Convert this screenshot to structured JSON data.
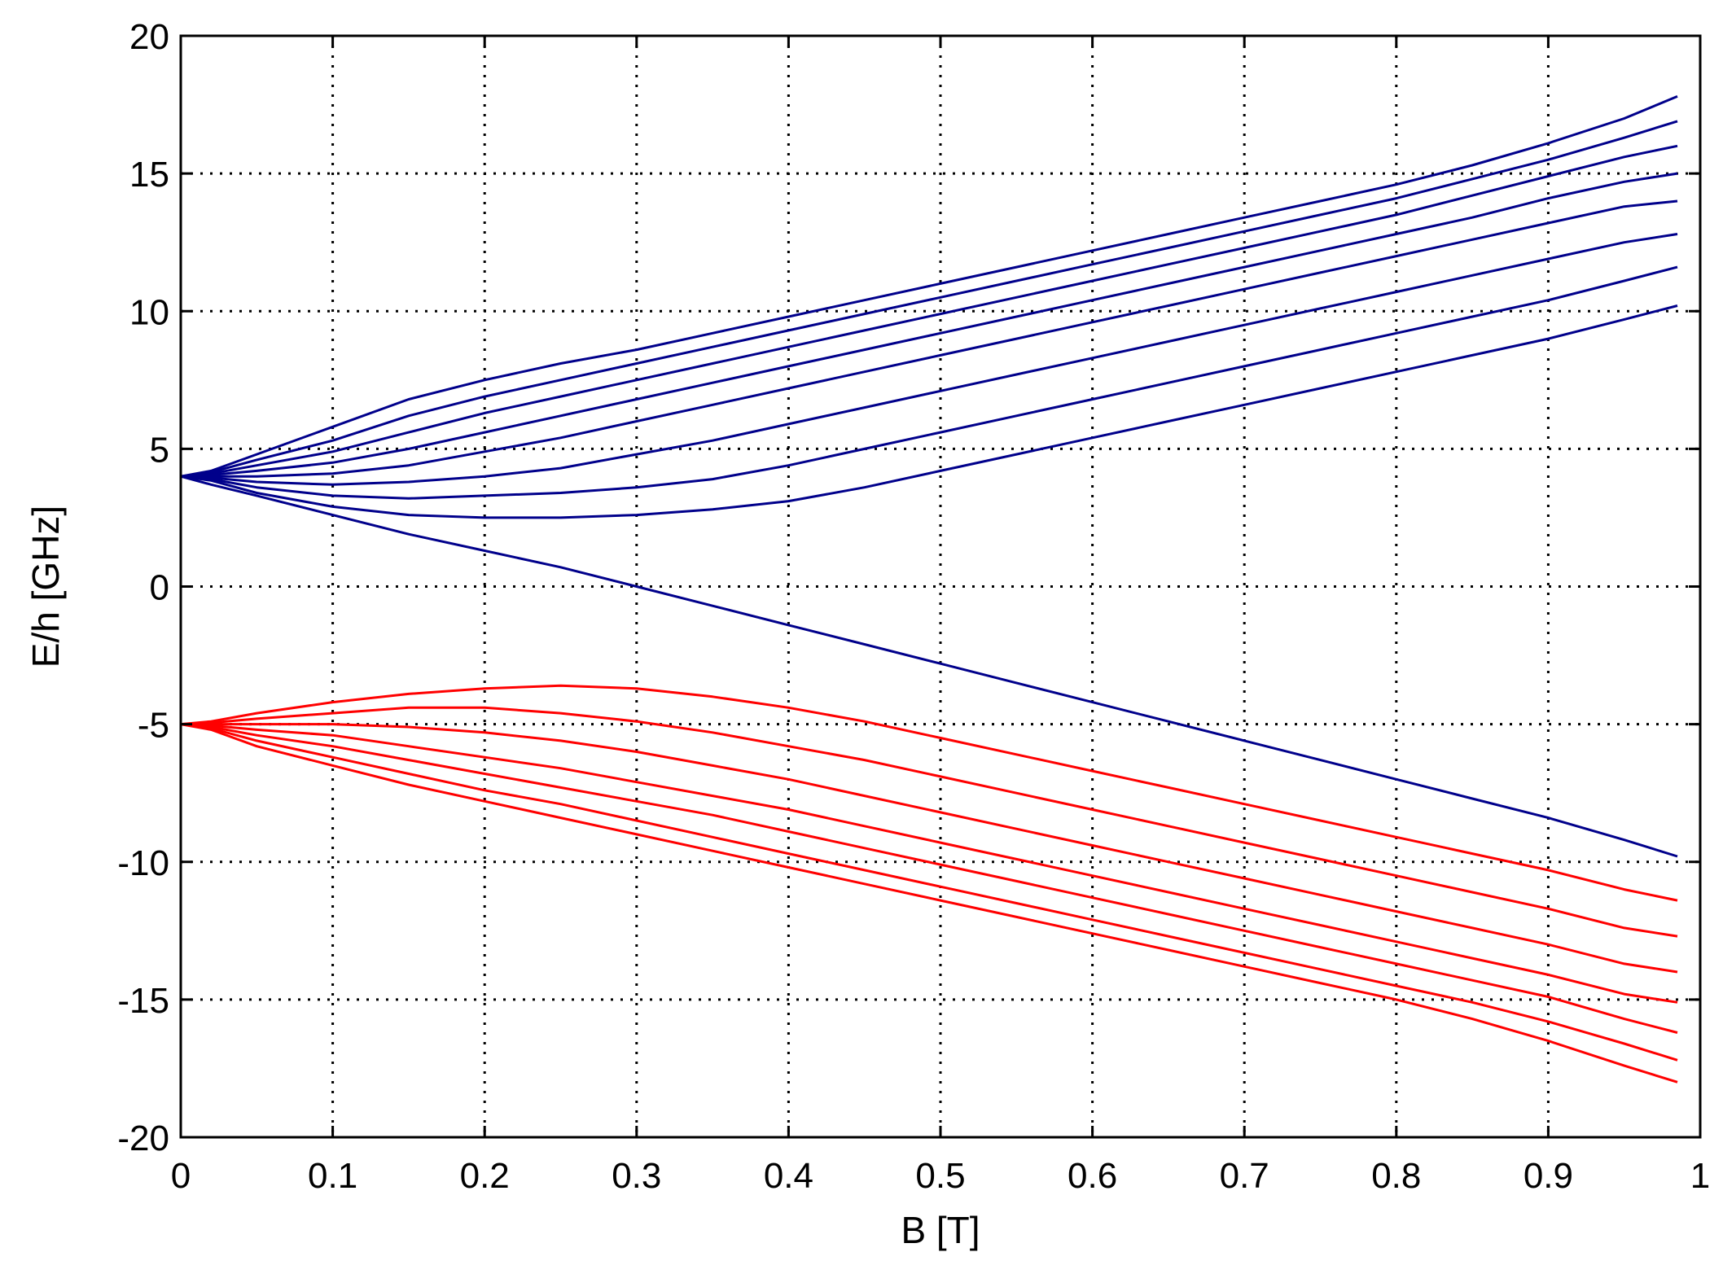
{
  "chart_data": {
    "type": "line",
    "title": "",
    "xlabel": "B [T]",
    "ylabel": "E/h [GHz]",
    "xlim": [
      0,
      1
    ],
    "ylim": [
      -20,
      20
    ],
    "xticks": [
      0,
      0.1,
      0.2,
      0.3,
      0.4,
      0.5,
      0.6,
      0.7,
      0.8,
      0.9,
      1
    ],
    "xtick_labels": [
      "0",
      "0.1",
      "0.2",
      "0.3",
      "0.4",
      "0.5",
      "0.6",
      "0.7",
      "0.8",
      "0.9",
      "1"
    ],
    "yticks": [
      -20,
      -15,
      -10,
      -5,
      0,
      5,
      10,
      15,
      20
    ],
    "ytick_labels": [
      "-20",
      "-15",
      "-10",
      "-5",
      "0",
      "5",
      "10",
      "15",
      "20"
    ],
    "grid": true,
    "grid_style": "dotted",
    "legend": "none",
    "colors": {
      "upper": "#00008b",
      "lower": "#ff0000",
      "axis": "#000000",
      "grid": "#000000"
    },
    "x": [
      0,
      0.02,
      0.05,
      0.1,
      0.15,
      0.2,
      0.25,
      0.3,
      0.35,
      0.4,
      0.45,
      0.5,
      0.55,
      0.6,
      0.65,
      0.7,
      0.75,
      0.8,
      0.85,
      0.9,
      0.95,
      0.985
    ],
    "series": [
      {
        "group": "upper",
        "values": [
          4,
          4.2,
          4.8,
          5.8,
          6.8,
          7.5,
          8.1,
          8.6,
          9.2,
          9.8,
          10.4,
          11.0,
          11.6,
          12.2,
          12.8,
          13.4,
          14.0,
          14.6,
          15.3,
          16.1,
          17.0,
          17.8
        ]
      },
      {
        "group": "upper",
        "values": [
          4,
          4.15,
          4.6,
          5.3,
          6.2,
          6.9,
          7.5,
          8.1,
          8.7,
          9.3,
          9.9,
          10.5,
          11.1,
          11.7,
          12.3,
          12.9,
          13.5,
          14.1,
          14.8,
          15.5,
          16.3,
          16.9
        ]
      },
      {
        "group": "upper",
        "values": [
          4,
          4.1,
          4.4,
          4.9,
          5.6,
          6.3,
          6.9,
          7.5,
          8.1,
          8.7,
          9.3,
          9.9,
          10.5,
          11.1,
          11.7,
          12.3,
          12.9,
          13.5,
          14.2,
          14.9,
          15.6,
          16.0
        ]
      },
      {
        "group": "upper",
        "values": [
          4,
          4.05,
          4.2,
          4.5,
          5.0,
          5.6,
          6.2,
          6.8,
          7.4,
          8.0,
          8.6,
          9.2,
          9.8,
          10.4,
          11.0,
          11.6,
          12.2,
          12.8,
          13.4,
          14.1,
          14.7,
          15.0
        ]
      },
      {
        "group": "upper",
        "values": [
          4,
          4.0,
          4.0,
          4.1,
          4.4,
          4.9,
          5.4,
          6.0,
          6.6,
          7.2,
          7.8,
          8.4,
          9.0,
          9.6,
          10.2,
          10.8,
          11.4,
          12.0,
          12.6,
          13.2,
          13.8,
          14.0
        ]
      },
      {
        "group": "upper",
        "values": [
          4,
          3.95,
          3.8,
          3.7,
          3.8,
          4.0,
          4.3,
          4.8,
          5.3,
          5.9,
          6.5,
          7.1,
          7.7,
          8.3,
          8.9,
          9.5,
          10.1,
          10.7,
          11.3,
          11.9,
          12.5,
          12.8
        ]
      },
      {
        "group": "upper",
        "values": [
          4,
          3.9,
          3.6,
          3.3,
          3.2,
          3.3,
          3.4,
          3.6,
          3.9,
          4.4,
          5.0,
          5.6,
          6.2,
          6.8,
          7.4,
          8.0,
          8.6,
          9.2,
          9.8,
          10.4,
          11.1,
          11.6
        ]
      },
      {
        "group": "upper",
        "values": [
          4,
          3.85,
          3.4,
          2.9,
          2.6,
          2.5,
          2.5,
          2.6,
          2.8,
          3.1,
          3.6,
          4.2,
          4.8,
          5.4,
          6.0,
          6.6,
          7.2,
          7.8,
          8.4,
          9.0,
          9.7,
          10.2
        ]
      },
      {
        "group": "upper",
        "values": [
          4,
          3.7,
          3.3,
          2.6,
          1.9,
          1.3,
          0.7,
          0.0,
          -0.7,
          -1.4,
          -2.1,
          -2.8,
          -3.5,
          -4.2,
          -4.9,
          -5.6,
          -6.3,
          -7.0,
          -7.7,
          -8.4,
          -9.2,
          -9.8
        ]
      },
      {
        "group": "lower",
        "values": [
          -5,
          -4.9,
          -4.6,
          -4.2,
          -3.9,
          -3.7,
          -3.6,
          -3.7,
          -4.0,
          -4.4,
          -4.9,
          -5.5,
          -6.1,
          -6.7,
          -7.3,
          -7.9,
          -8.5,
          -9.1,
          -9.7,
          -10.3,
          -11.0,
          -11.4
        ]
      },
      {
        "group": "lower",
        "values": [
          -5,
          -4.95,
          -4.8,
          -4.6,
          -4.4,
          -4.4,
          -4.6,
          -4.9,
          -5.3,
          -5.8,
          -6.3,
          -6.9,
          -7.5,
          -8.1,
          -8.7,
          -9.3,
          -9.9,
          -10.5,
          -11.1,
          -11.7,
          -12.4,
          -12.7
        ]
      },
      {
        "group": "lower",
        "values": [
          -5,
          -5.0,
          -5.0,
          -5.0,
          -5.1,
          -5.3,
          -5.6,
          -6.0,
          -6.5,
          -7.0,
          -7.6,
          -8.2,
          -8.8,
          -9.4,
          -10.0,
          -10.6,
          -11.2,
          -11.8,
          -12.4,
          -13.0,
          -13.7,
          -14.0
        ]
      },
      {
        "group": "lower",
        "values": [
          -5,
          -5.05,
          -5.2,
          -5.4,
          -5.8,
          -6.2,
          -6.6,
          -7.1,
          -7.6,
          -8.1,
          -8.7,
          -9.3,
          -9.9,
          -10.5,
          -11.1,
          -11.7,
          -12.3,
          -12.9,
          -13.5,
          -14.1,
          -14.8,
          -15.1
        ]
      },
      {
        "group": "lower",
        "values": [
          -5,
          -5.1,
          -5.4,
          -5.8,
          -6.3,
          -6.8,
          -7.3,
          -7.8,
          -8.3,
          -8.9,
          -9.5,
          -10.1,
          -10.7,
          -11.3,
          -11.9,
          -12.5,
          -13.1,
          -13.7,
          -14.3,
          -14.9,
          -15.7,
          -16.2
        ]
      },
      {
        "group": "lower",
        "values": [
          -5,
          -5.15,
          -5.6,
          -6.2,
          -6.8,
          -7.4,
          -7.9,
          -8.5,
          -9.1,
          -9.7,
          -10.3,
          -10.9,
          -11.5,
          -12.1,
          -12.7,
          -13.3,
          -13.9,
          -14.5,
          -15.1,
          -15.8,
          -16.6,
          -17.2
        ]
      },
      {
        "group": "lower",
        "values": [
          -5,
          -5.2,
          -5.8,
          -6.5,
          -7.2,
          -7.8,
          -8.4,
          -9.0,
          -9.6,
          -10.2,
          -10.8,
          -11.4,
          -12.0,
          -12.6,
          -13.2,
          -13.8,
          -14.4,
          -15.0,
          -15.7,
          -16.5,
          -17.4,
          -18.0
        ]
      }
    ]
  }
}
